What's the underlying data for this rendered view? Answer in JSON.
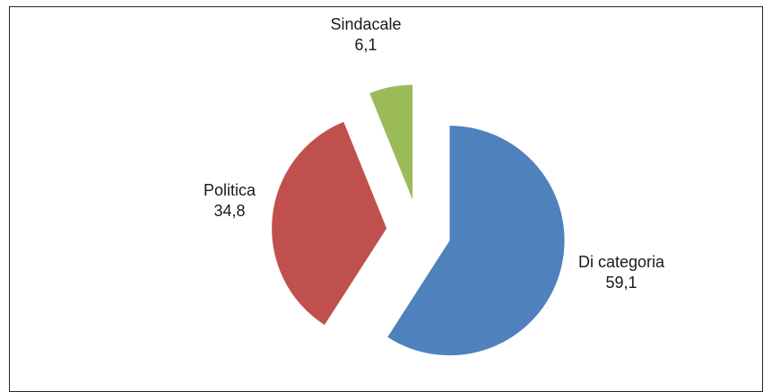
{
  "chart_data": {
    "type": "pie",
    "title": "",
    "slices": [
      {
        "label": "Di categoria",
        "value": 59.1,
        "value_label": "59,1",
        "color": "#4F81BD",
        "exploded": true
      },
      {
        "label": "Politica",
        "value": 34.8,
        "value_label": "34,8",
        "color": "#C0504D",
        "exploded": true
      },
      {
        "label": "Sindacale",
        "value": 6.1,
        "value_label": "6,1",
        "color": "#9BBB59",
        "exploded": true
      }
    ],
    "start_angle_deg": 0,
    "direction": "clockwise",
    "legend": "none"
  }
}
